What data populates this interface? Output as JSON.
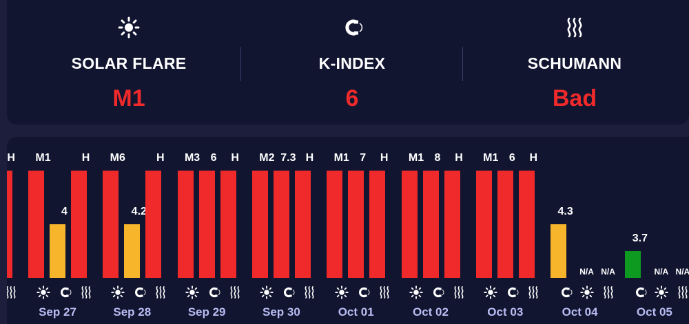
{
  "summary": {
    "solar_flare": {
      "label": "SOLAR FLARE",
      "value": "M1",
      "icon": "sun-icon"
    },
    "k_index": {
      "label": "K-INDEX",
      "value": "6",
      "icon": "magnet-icon"
    },
    "schumann": {
      "label": "SCHUMANN",
      "value": "Bad",
      "icon": "waves-icon"
    }
  },
  "colors": {
    "high": "#f02a2a",
    "moderate": "#f7b52b",
    "low": "#0e9a21",
    "day_label": "#b9bdf2"
  },
  "days": [
    {
      "date": "",
      "partial": true,
      "bars": [
        {
          "kind": "schumann",
          "label": "H",
          "level": 1.0,
          "status": "high"
        }
      ]
    },
    {
      "date": "Sep 27",
      "bars": [
        {
          "kind": "solar",
          "label": "M1",
          "level": 1.0,
          "status": "high"
        },
        {
          "kind": "kindex",
          "label": "4",
          "level": 0.5,
          "status": "moderate"
        },
        {
          "kind": "schumann",
          "label": "H",
          "level": 1.0,
          "status": "high"
        }
      ]
    },
    {
      "date": "Sep 28",
      "bars": [
        {
          "kind": "solar",
          "label": "M6",
          "level": 1.0,
          "status": "high"
        },
        {
          "kind": "kindex",
          "label": "4.2",
          "level": 0.5,
          "status": "moderate"
        },
        {
          "kind": "schumann",
          "label": "H",
          "level": 1.0,
          "status": "high"
        }
      ]
    },
    {
      "date": "Sep 29",
      "bars": [
        {
          "kind": "solar",
          "label": "M3",
          "level": 1.0,
          "status": "high"
        },
        {
          "kind": "kindex",
          "label": "6",
          "level": 1.0,
          "status": "high"
        },
        {
          "kind": "schumann",
          "label": "H",
          "level": 1.0,
          "status": "high"
        }
      ]
    },
    {
      "date": "Sep 30",
      "bars": [
        {
          "kind": "solar",
          "label": "M2",
          "level": 1.0,
          "status": "high"
        },
        {
          "kind": "kindex",
          "label": "7.3",
          "level": 1.0,
          "status": "high"
        },
        {
          "kind": "schumann",
          "label": "H",
          "level": 1.0,
          "status": "high"
        }
      ]
    },
    {
      "date": "Oct 01",
      "bars": [
        {
          "kind": "solar",
          "label": "M1",
          "level": 1.0,
          "status": "high"
        },
        {
          "kind": "kindex",
          "label": "7",
          "level": 1.0,
          "status": "high"
        },
        {
          "kind": "schumann",
          "label": "H",
          "level": 1.0,
          "status": "high"
        }
      ]
    },
    {
      "date": "Oct 02",
      "bars": [
        {
          "kind": "solar",
          "label": "M1",
          "level": 1.0,
          "status": "high"
        },
        {
          "kind": "kindex",
          "label": "8",
          "level": 1.0,
          "status": "high"
        },
        {
          "kind": "schumann",
          "label": "H",
          "level": 1.0,
          "status": "high"
        }
      ]
    },
    {
      "date": "Oct 03",
      "bars": [
        {
          "kind": "solar",
          "label": "M1",
          "level": 1.0,
          "status": "high"
        },
        {
          "kind": "kindex",
          "label": "6",
          "level": 1.0,
          "status": "high"
        },
        {
          "kind": "schumann",
          "label": "H",
          "level": 1.0,
          "status": "high"
        }
      ]
    },
    {
      "date": "Oct 04",
      "bars": [
        {
          "kind": "kindex",
          "label": "4.3",
          "level": 0.5,
          "status": "moderate"
        },
        {
          "kind": "solar",
          "label": "N/A",
          "level": 0,
          "status": "none"
        },
        {
          "kind": "schumann",
          "label": "N/A",
          "level": 0,
          "status": "none"
        }
      ]
    },
    {
      "date": "Oct 05",
      "bars": [
        {
          "kind": "kindex",
          "label": "3.7",
          "level": 0.25,
          "status": "low"
        },
        {
          "kind": "solar",
          "label": "N/A",
          "level": 0,
          "status": "none"
        },
        {
          "kind": "schumann",
          "label": "N/A",
          "level": 0,
          "status": "none"
        }
      ]
    }
  ]
}
